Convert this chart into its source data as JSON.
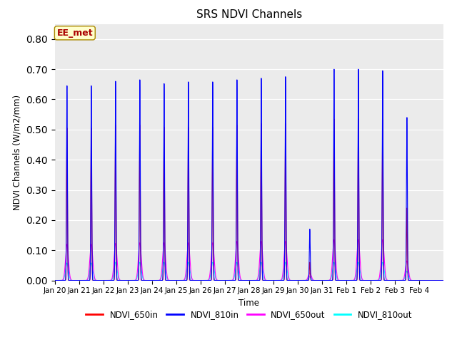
{
  "title": "SRS NDVI Channels",
  "ylabel": "NDVI Channels (W/m2/mm)",
  "xlabel": "Time",
  "annotation": "EE_met",
  "annotation_color": "#aa0000",
  "annotation_bg": "#ffffcc",
  "plot_bg": "#ebebeb",
  "fig_bg": "#ffffff",
  "legend": [
    "NDVI_650in",
    "NDVI_810in",
    "NDVI_650out",
    "NDVI_810out"
  ],
  "line_colors": [
    "red",
    "blue",
    "magenta",
    "cyan"
  ],
  "ylim": [
    0.0,
    0.85
  ],
  "yticks": [
    0.0,
    0.1,
    0.2,
    0.3,
    0.4,
    0.5,
    0.6,
    0.7,
    0.8
  ],
  "xtick_labels": [
    "Jan 20",
    "Jan 21",
    "Jan 22",
    "Jan 23",
    "Jan 24",
    "Jan 25",
    "Jan 26",
    "Jan 27",
    "Jan 28",
    "Jan 29",
    "Jan 30",
    "Jan 31",
    "Feb 1",
    "Feb 2",
    "Feb 3",
    "Feb 4"
  ],
  "peak_650in": [
    0.505,
    0.505,
    0.515,
    0.515,
    0.508,
    0.508,
    0.508,
    0.515,
    0.52,
    0.52,
    0.06,
    0.535,
    0.535,
    0.535,
    0.24,
    0.0
  ],
  "peak_810in": [
    0.645,
    0.645,
    0.66,
    0.665,
    0.652,
    0.658,
    0.658,
    0.665,
    0.67,
    0.675,
    0.17,
    0.7,
    0.7,
    0.695,
    0.54,
    0.0
  ],
  "peak_650out": [
    0.12,
    0.12,
    0.123,
    0.125,
    0.125,
    0.125,
    0.125,
    0.13,
    0.13,
    0.13,
    0.025,
    0.135,
    0.135,
    0.135,
    0.065,
    0.0
  ],
  "peak_810out": [
    0.058,
    0.058,
    0.06,
    0.06,
    0.06,
    0.06,
    0.06,
    0.06,
    0.06,
    0.06,
    0.012,
    0.06,
    0.06,
    0.06,
    0.03,
    0.0
  ],
  "n_days": 16,
  "points_per_day": 500,
  "sigma_narrow": 0.018,
  "sigma_wide": 0.06,
  "linewidth": 0.8
}
